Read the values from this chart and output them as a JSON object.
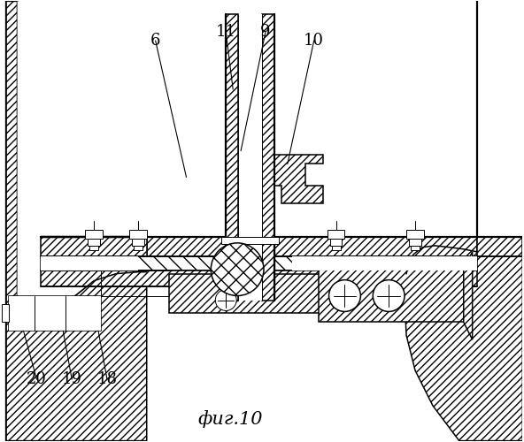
{
  "title": "фиг.10",
  "bg_color": "#ffffff",
  "line_color": "#000000",
  "lw_thin": 0.7,
  "lw_med": 1.1,
  "lw_thick": 1.6
}
